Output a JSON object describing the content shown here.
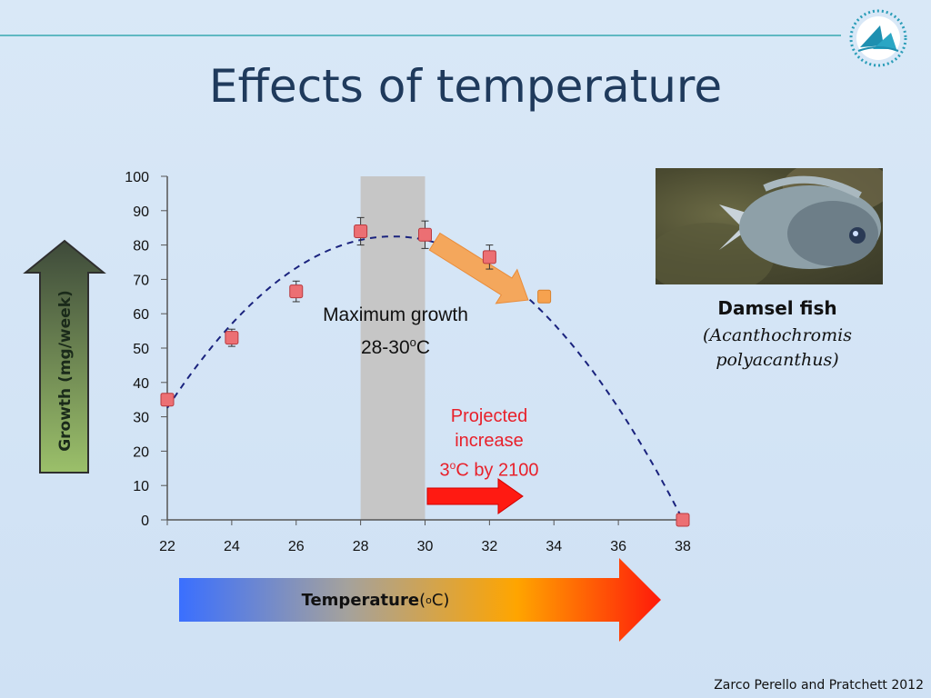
{
  "slide": {
    "title": "Effects of temperature",
    "y_axis_label": "Growth (mg/week)",
    "x_axis_label_bold": "Temperature",
    "x_axis_label_unit_open": " (",
    "x_axis_label_unit_sup": "o",
    "x_axis_label_unit_close": "C)",
    "max_growth_line1": "Maximum growth",
    "max_growth_line2_pre": "28-30",
    "max_growth_line2_sup": "o",
    "max_growth_line2_post": "C",
    "projected_line1": "Projected",
    "projected_line2": "increase",
    "projected_line3_pre": "3",
    "projected_line3_sup": "o",
    "projected_line3_post": "C by 2100",
    "fish_name": "Damsel fish",
    "fish_sci_line1": "(Acanthochromis",
    "fish_sci_line2": "polyacanthus)",
    "citation": "Zarco Perello and Pratchett 2012"
  },
  "chart_data": {
    "type": "scatter",
    "title": "",
    "xlabel": "Temperature (oC)",
    "ylabel": "Growth (mg/week)",
    "xlim": [
      22,
      38
    ],
    "ylim": [
      0,
      100
    ],
    "xticks": [
      22,
      24,
      26,
      28,
      30,
      32,
      34,
      36,
      38
    ],
    "yticks": [
      0,
      10,
      20,
      30,
      40,
      50,
      60,
      70,
      80,
      90,
      100
    ],
    "grid": false,
    "series": [
      {
        "points": [
          {
            "x": 22,
            "y": 35,
            "err": 0
          },
          {
            "x": 24,
            "y": 53,
            "err": 2.5
          },
          {
            "x": 26,
            "y": 66.5,
            "err": 3
          },
          {
            "x": 28,
            "y": 84,
            "err": 4
          },
          {
            "x": 30,
            "y": 83,
            "err": 4
          },
          {
            "x": 32,
            "y": 76.5,
            "err": 3.5
          },
          {
            "x": 33.7,
            "y": 65,
            "err": 0
          },
          {
            "x": 38,
            "y": 0,
            "err": 0
          }
        ]
      }
    ],
    "fit_curve": {
      "style": "dashed",
      "color": "#1a237e",
      "peak_x": 29,
      "peak_y": 82.5,
      "x_start": 22,
      "x_end": 38
    },
    "shaded_band": {
      "x_from": 28,
      "x_to": 30,
      "y_to": 100,
      "color": "#c6c6c6"
    },
    "colors": {
      "marker": "#ec6f73",
      "marker_edge": "#b83a3f",
      "projected_marker": "#f6a24f",
      "axis": "#555555"
    }
  }
}
